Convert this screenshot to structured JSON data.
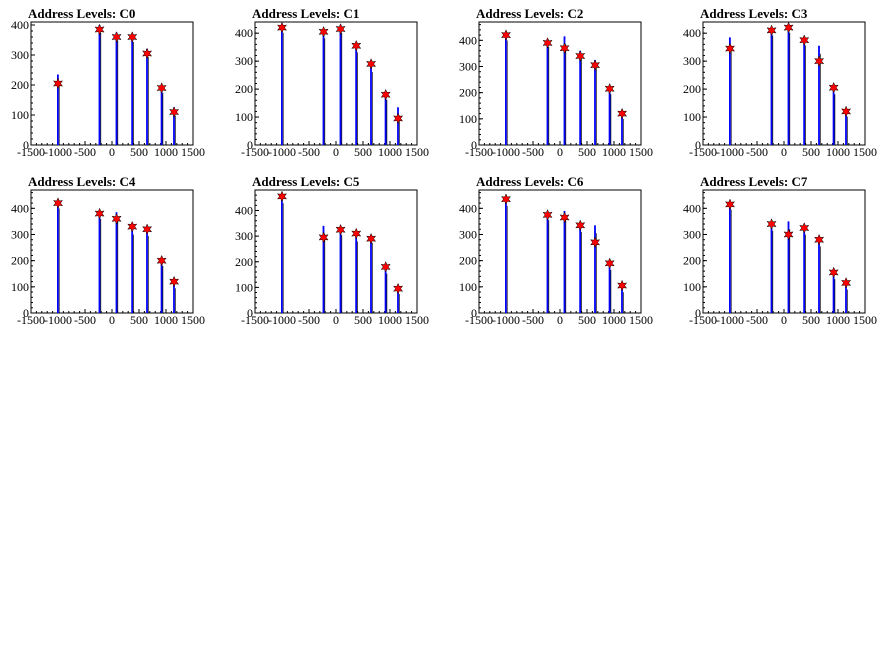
{
  "chart_data": [
    {
      "type": "bar",
      "title": "Address Levels: C0",
      "xlim": [
        -1500,
        1500
      ],
      "ylim": [
        0,
        410
      ],
      "x_ticks": [
        -1500,
        -1000,
        -500,
        0,
        500,
        1000,
        1500
      ],
      "y_ticks": [
        0,
        100,
        200,
        300,
        400
      ],
      "series": [
        {
          "x": [
            -1000,
            -230,
            85,
            375,
            650,
            920,
            1150
          ],
          "values": [
            235,
            400,
            375,
            370,
            320,
            200,
            125
          ]
        }
      ],
      "peaks": [
        {
          "x": [
            -1000,
            -230,
            85,
            375,
            650,
            920,
            1150
          ],
          "values": [
            205,
            385,
            360,
            360,
            305,
            190,
            110
          ]
        }
      ]
    },
    {
      "type": "bar",
      "title": "Address Levels: C1",
      "xlim": [
        -1500,
        1500
      ],
      "ylim": [
        0,
        440
      ],
      "x_ticks": [
        -1500,
        -1000,
        -500,
        0,
        500,
        1000,
        1500
      ],
      "y_ticks": [
        0,
        100,
        200,
        300,
        400
      ],
      "series": [
        {
          "x": [
            -1000,
            -230,
            85,
            375,
            650,
            920,
            1150
          ],
          "values": [
            430,
            410,
            430,
            360,
            290,
            190,
            135
          ]
        }
      ],
      "peaks": [
        {
          "x": [
            -1000,
            -230,
            85,
            375,
            650,
            920,
            1150
          ],
          "values": [
            420,
            405,
            415,
            355,
            290,
            180,
            95
          ]
        }
      ]
    },
    {
      "type": "bar",
      "title": "Address Levels: C2",
      "xlim": [
        -1500,
        1500
      ],
      "ylim": [
        0,
        470
      ],
      "x_ticks": [
        -1500,
        -1000,
        -500,
        0,
        500,
        1000,
        1500
      ],
      "y_ticks": [
        0,
        100,
        200,
        300,
        400
      ],
      "series": [
        {
          "x": [
            -1000,
            -230,
            85,
            375,
            650,
            920,
            1150
          ],
          "values": [
            430,
            405,
            415,
            360,
            325,
            225,
            130
          ]
        }
      ],
      "peaks": [
        {
          "x": [
            -1000,
            -230,
            85,
            375,
            650,
            920,
            1150
          ],
          "values": [
            420,
            390,
            370,
            340,
            305,
            215,
            120
          ]
        }
      ]
    },
    {
      "type": "bar",
      "title": "Address Levels: C3",
      "xlim": [
        -1500,
        1500
      ],
      "ylim": [
        0,
        440
      ],
      "x_ticks": [
        -1500,
        -1000,
        -500,
        0,
        500,
        1000,
        1500
      ],
      "y_ticks": [
        0,
        100,
        200,
        300,
        400
      ],
      "series": [
        {
          "x": [
            -1000,
            -230,
            85,
            375,
            650,
            920,
            1150
          ],
          "values": [
            385,
            420,
            430,
            385,
            355,
            210,
            130
          ]
        }
      ],
      "peaks": [
        {
          "x": [
            -1000,
            -230,
            85,
            375,
            650,
            920,
            1150
          ],
          "values": [
            345,
            410,
            420,
            375,
            300,
            205,
            120
          ]
        }
      ]
    },
    {
      "type": "bar",
      "title": "Address Levels: C4",
      "xlim": [
        -1500,
        1500
      ],
      "ylim": [
        0,
        470
      ],
      "x_ticks": [
        -1500,
        -1000,
        -500,
        0,
        500,
        1000,
        1500
      ],
      "y_ticks": [
        0,
        100,
        200,
        300,
        400
      ],
      "series": [
        {
          "x": [
            -1000,
            -230,
            85,
            375,
            650,
            920,
            1150
          ],
          "values": [
            430,
            390,
            385,
            330,
            325,
            210,
            125
          ]
        }
      ],
      "peaks": [
        {
          "x": [
            -1000,
            -230,
            85,
            375,
            650,
            920,
            1150
          ],
          "values": [
            420,
            380,
            360,
            330,
            320,
            200,
            120
          ]
        }
      ]
    },
    {
      "type": "bar",
      "title": "Address Levels: C5",
      "xlim": [
        -1500,
        1500
      ],
      "ylim": [
        0,
        480
      ],
      "x_ticks": [
        -1500,
        -1000,
        -500,
        0,
        500,
        1000,
        1500
      ],
      "y_ticks": [
        0,
        100,
        200,
        300,
        400
      ],
      "series": [
        {
          "x": [
            -1000,
            -230,
            85,
            375,
            650,
            920,
            1150
          ],
          "values": [
            460,
            340,
            335,
            310,
            305,
            185,
            105
          ]
        }
      ],
      "peaks": [
        {
          "x": [
            -1000,
            -230,
            85,
            375,
            650,
            920,
            1150
          ],
          "values": [
            455,
            295,
            325,
            310,
            290,
            180,
            95
          ]
        }
      ]
    },
    {
      "type": "bar",
      "title": "Address Levels: C6",
      "xlim": [
        -1500,
        1500
      ],
      "ylim": [
        0,
        470
      ],
      "x_ticks": [
        -1500,
        -1000,
        -500,
        0,
        500,
        1000,
        1500
      ],
      "y_ticks": [
        0,
        100,
        200,
        300,
        400
      ],
      "series": [
        {
          "x": [
            -1000,
            -230,
            85,
            375,
            650,
            920,
            1150
          ],
          "values": [
            440,
            385,
            390,
            340,
            335,
            195,
            110
          ]
        }
      ],
      "peaks": [
        {
          "x": [
            -1000,
            -230,
            85,
            375,
            650,
            920,
            1150
          ],
          "values": [
            435,
            375,
            365,
            335,
            270,
            190,
            105
          ]
        }
      ]
    },
    {
      "type": "bar",
      "title": "Address Levels: C7",
      "xlim": [
        -1500,
        1500
      ],
      "ylim": [
        0,
        470
      ],
      "x_ticks": [
        -1500,
        -1000,
        -500,
        0,
        500,
        1000,
        1500
      ],
      "y_ticks": [
        0,
        100,
        200,
        300,
        400
      ],
      "series": [
        {
          "x": [
            -1000,
            -230,
            85,
            375,
            650,
            920,
            1150
          ],
          "values": [
            425,
            345,
            350,
            330,
            285,
            160,
            120
          ]
        }
      ],
      "peaks": [
        {
          "x": [
            -1000,
            -230,
            85,
            375,
            650,
            920,
            1150
          ],
          "values": [
            415,
            340,
            300,
            325,
            280,
            155,
            115
          ]
        }
      ]
    }
  ],
  "colors": {
    "bar_fill": "#0000ff",
    "bar_edge": "#000000",
    "marker": "#ff0000",
    "axis": "#000000"
  }
}
